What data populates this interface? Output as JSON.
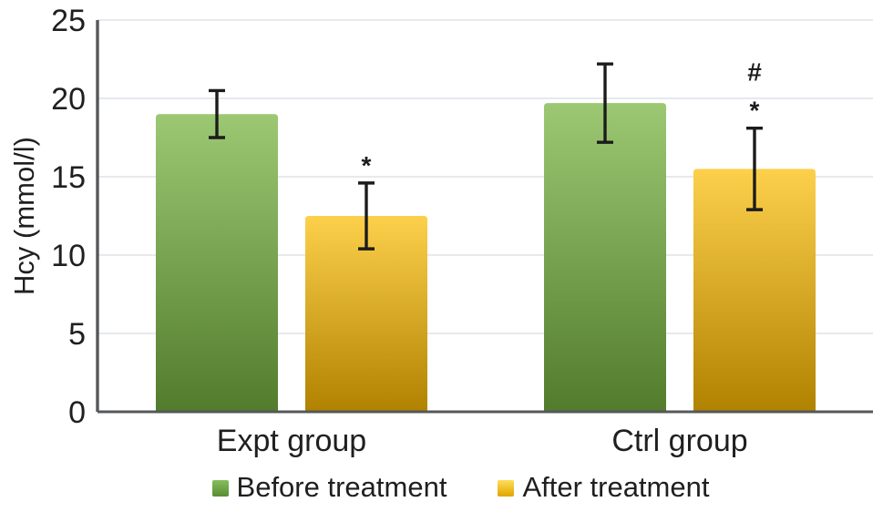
{
  "chart_data": {
    "type": "bar",
    "title": "",
    "xlabel": "",
    "ylabel": "Hcy (mmol/l)",
    "categories": [
      "Expt group",
      "Ctrl group"
    ],
    "y_axis": {
      "min": 0,
      "max": 25,
      "step": 5,
      "tick_labels": [
        "0",
        "5",
        "10",
        "15",
        "20",
        "25"
      ]
    },
    "grid": "horizontal",
    "legend_position": "bottom",
    "series": [
      {
        "name": "Before treatment",
        "values": [
          19.0,
          19.7
        ],
        "error_bars": [
          1.5,
          2.5
        ],
        "annotations": [
          [],
          []
        ],
        "color_top": "#9CC873",
        "color_bottom": "#527C2C",
        "legend_color_top": "#86BE5C",
        "legend_color_bottom": "#598C33"
      },
      {
        "name": "After treatment",
        "values": [
          12.5,
          15.5
        ],
        "error_bars": [
          2.1,
          2.6
        ],
        "annotations": [
          [
            "*"
          ],
          [
            "#",
            "*"
          ]
        ],
        "color_top": "#FDD04C",
        "color_bottom": "#B08200",
        "legend_color_top": "#FFDE59",
        "legend_color_bottom": "#DFA500"
      }
    ],
    "error_bar_color": "#1c1c1c",
    "annotation_color": "#1c1c1c",
    "axis_color": "#55575a",
    "gridline_color": "#dfe2e7",
    "text_color": "#1f1f1f"
  }
}
